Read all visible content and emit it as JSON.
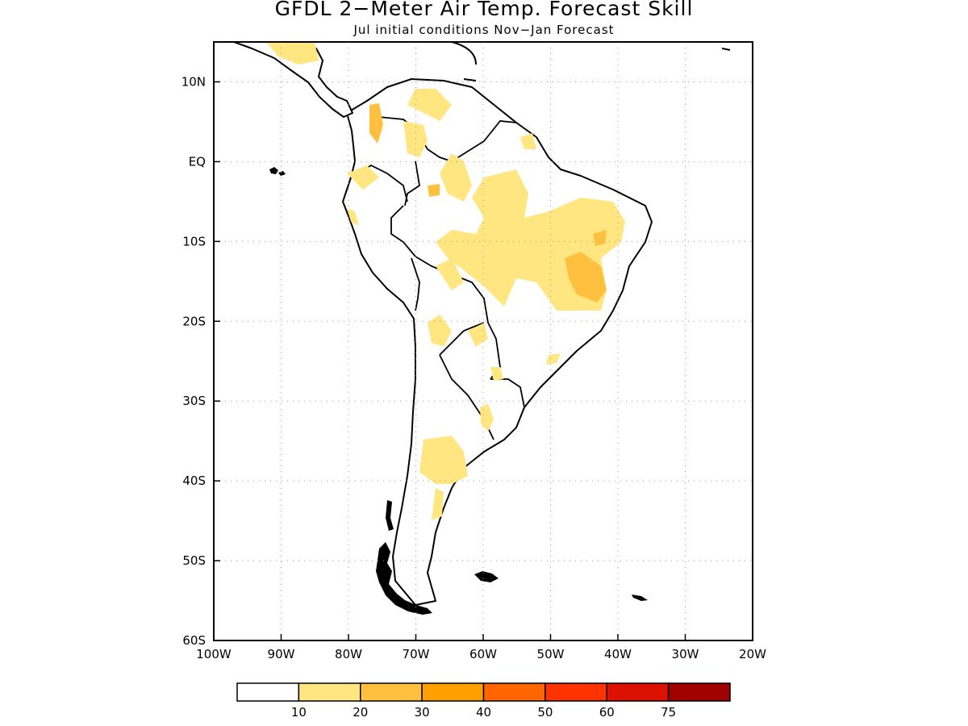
{
  "title": "GFDL 2−Meter Air Temp. Forecast Skill",
  "subtitle": "Jul initial conditions   Nov−Jan Forecast",
  "map": {
    "projection": "lat-lon",
    "lon_range": [
      -100,
      -20
    ],
    "lat_range": [
      -60,
      15
    ],
    "grid": "dotted",
    "lon_ticks": [
      "100W",
      "90W",
      "80W",
      "70W",
      "60W",
      "50W",
      "40W",
      "30W",
      "20W"
    ],
    "lat_ticks": [
      "10N",
      "EQ",
      "10S",
      "20S",
      "30S",
      "40S",
      "50S",
      "60S"
    ]
  },
  "colorbar": {
    "colors": [
      "#ffffff",
      "#ffe680",
      "#ffc040",
      "#ffa000",
      "#ff6600",
      "#ff3300",
      "#dd1100",
      "#a00000"
    ],
    "labels": [
      "10",
      "20",
      "30",
      "40",
      "50",
      "60",
      "75"
    ]
  }
}
